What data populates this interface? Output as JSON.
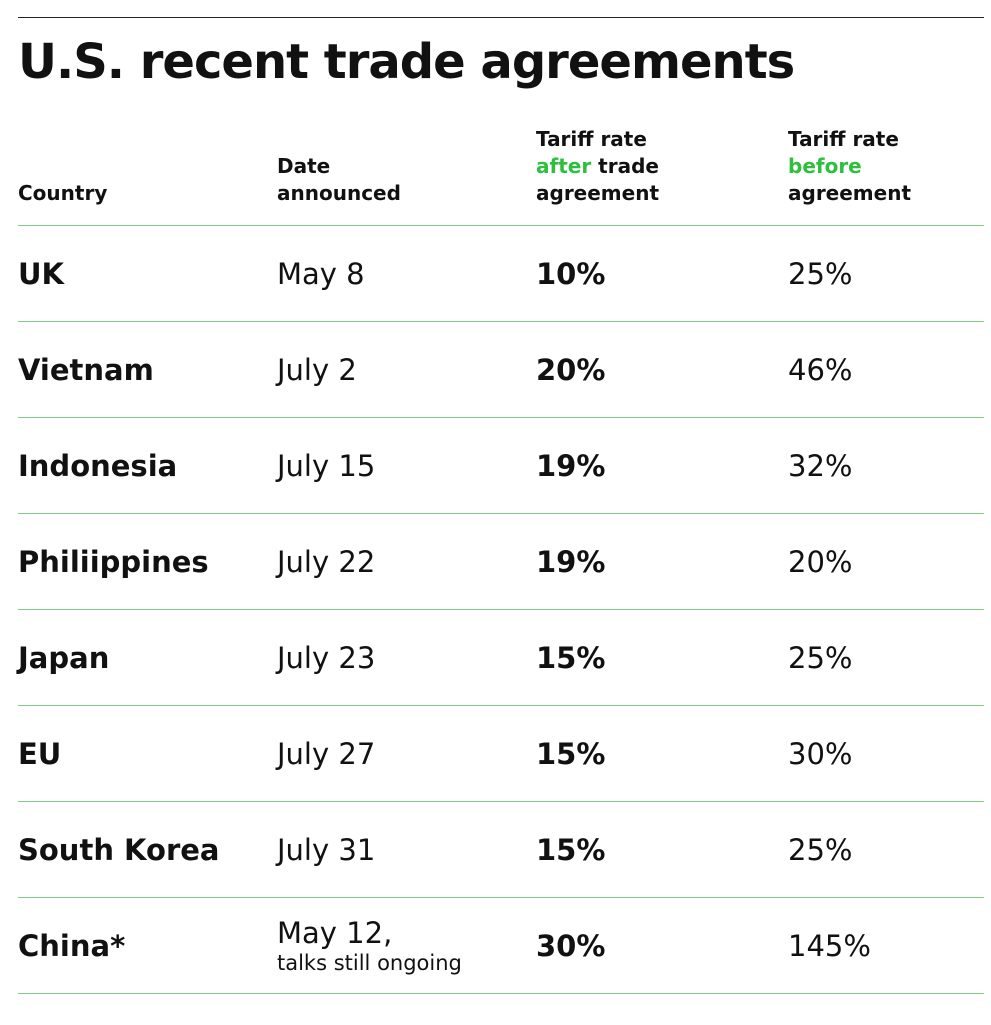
{
  "title": "U.S. recent trade agreements",
  "colors": {
    "accent_green": "#2fbf3f",
    "rule_green": "#7ccf85",
    "text": "#111111"
  },
  "chart_data": {
    "type": "table",
    "title": "U.S. recent trade agreements",
    "columns": [
      {
        "label": "Country"
      },
      {
        "label": "Date announced"
      },
      {
        "label": "Tariff rate after trade agreement",
        "parts": [
          "Tariff rate",
          "after",
          "trade",
          "agreement"
        ]
      },
      {
        "label": "Tariff rate before agreement",
        "parts": [
          "Tariff rate",
          "before",
          "agreement"
        ]
      }
    ],
    "header": {
      "country": "Country",
      "date_line1": "Date",
      "date_line2": "announced",
      "after_line1": "Tariff rate",
      "after_green": "after",
      "after_rest": " trade",
      "after_line3": "agreement",
      "before_line1": "Tariff rate",
      "before_green": "before",
      "before_line3": "agreement"
    },
    "rows": [
      {
        "country": "UK",
        "date": "May 8",
        "after": "10%",
        "before": "25%",
        "after_value": 10,
        "before_value": 25
      },
      {
        "country": "Vietnam",
        "date": "July 2",
        "after": "20%",
        "before": "46%",
        "after_value": 20,
        "before_value": 46
      },
      {
        "country": "Indonesia",
        "date": "July 15",
        "after": "19%",
        "before": "32%",
        "after_value": 19,
        "before_value": 32
      },
      {
        "country": "Philiippines",
        "date": "July 22",
        "after": "19%",
        "before": "20%",
        "after_value": 19,
        "before_value": 20
      },
      {
        "country": "Japan",
        "date": "July 23",
        "after": "15%",
        "before": "25%",
        "after_value": 15,
        "before_value": 25
      },
      {
        "country": "EU",
        "date": "July 27",
        "after": "15%",
        "before": "30%",
        "after_value": 15,
        "before_value": 30
      },
      {
        "country": "South Korea",
        "date": "July 31",
        "after": "15%",
        "before": "25%",
        "after_value": 15,
        "before_value": 25
      },
      {
        "country": "China*",
        "date": "May 12,",
        "date_note": "talks still ongoing",
        "after": "30%",
        "before": "145%",
        "after_value": 30,
        "before_value": 145
      }
    ]
  }
}
